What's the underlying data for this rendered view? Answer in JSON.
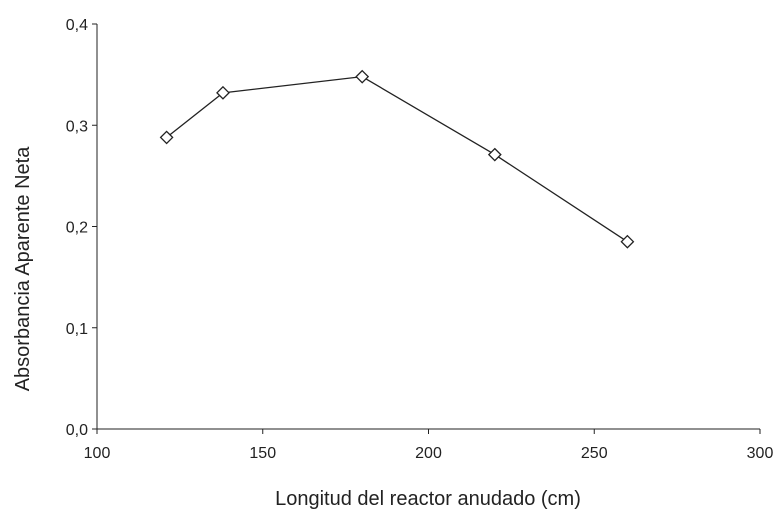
{
  "chart_data": {
    "type": "line",
    "title": "",
    "xlabel": "Longitud del reactor anudado (cm)",
    "ylabel": "Absorbancia Aparente Neta",
    "xlim": [
      100,
      300
    ],
    "ylim": [
      0.0,
      0.4
    ],
    "x_ticks": [
      100,
      150,
      200,
      250,
      300
    ],
    "x_tick_labels": [
      "100",
      "150",
      "200",
      "250",
      "300"
    ],
    "y_ticks": [
      0.0,
      0.1,
      0.2,
      0.3,
      0.4
    ],
    "y_tick_labels": [
      "0,0",
      "0,1",
      "0,2",
      "0,3",
      "0,4"
    ],
    "grid": false,
    "legend": "none",
    "marker": "diamond-open",
    "line_color": "#222222",
    "series": [
      {
        "x": [
          121,
          138,
          180,
          220,
          260
        ],
        "y": [
          0.288,
          0.332,
          0.348,
          0.271,
          0.185
        ]
      }
    ]
  }
}
